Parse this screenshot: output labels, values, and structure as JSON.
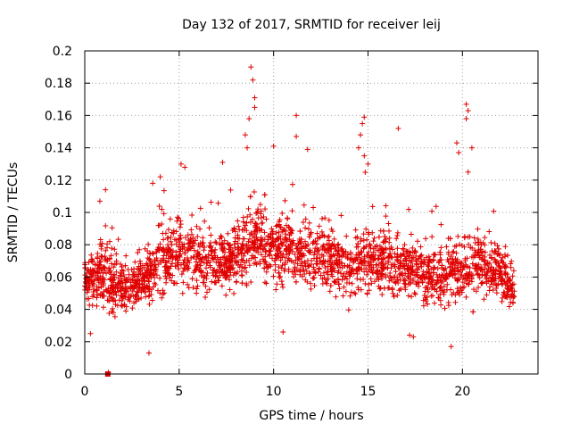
{
  "chart_data": {
    "type": "scatter",
    "title": "Day 132 of 2017, SRMTID for receiver leij",
    "xlabel": "GPS time / hours",
    "ylabel": "SRMTID / TECUs",
    "xlim": [
      0,
      24
    ],
    "ylim": [
      0,
      0.2
    ],
    "x_ticks": [
      0,
      5,
      10,
      15,
      20
    ],
    "x_tick_labels": [
      "0",
      "5",
      "10",
      "15",
      "20"
    ],
    "y_ticks": [
      0,
      0.02,
      0.04,
      0.06,
      0.08,
      0.1,
      0.12,
      0.14,
      0.16,
      0.18,
      0.2
    ],
    "y_tick_labels": [
      "0",
      "0.02",
      "0.04",
      "0.06",
      "0.08",
      "0.1",
      "0.12",
      "0.14",
      "0.16",
      "0.18",
      "0.2"
    ],
    "grid": true,
    "marker": "+",
    "color": "#e00000",
    "x_range_data": [
      0,
      22.75
    ],
    "profile_hours": [
      0,
      1,
      2,
      3,
      4,
      5,
      6,
      7,
      8,
      9,
      10,
      11,
      12,
      13,
      14,
      15,
      16,
      17,
      18,
      19,
      20,
      21,
      22,
      22.75
    ],
    "profile_center": [
      0.058,
      0.062,
      0.052,
      0.057,
      0.07,
      0.078,
      0.072,
      0.068,
      0.072,
      0.085,
      0.078,
      0.075,
      0.074,
      0.07,
      0.066,
      0.072,
      0.07,
      0.066,
      0.062,
      0.06,
      0.064,
      0.07,
      0.062,
      0.05
    ],
    "profile_spread": [
      0.01,
      0.018,
      0.013,
      0.014,
      0.018,
      0.02,
      0.017,
      0.016,
      0.018,
      0.022,
      0.018,
      0.018,
      0.018,
      0.017,
      0.017,
      0.018,
      0.017,
      0.016,
      0.016,
      0.016,
      0.018,
      0.018,
      0.016,
      0.01
    ],
    "point_count": 2600,
    "peaks": [
      {
        "x": 8.8,
        "y": 0.19
      },
      {
        "x": 8.9,
        "y": 0.182
      },
      {
        "x": 9.0,
        "y": 0.171
      },
      {
        "x": 9.0,
        "y": 0.165
      },
      {
        "x": 8.7,
        "y": 0.158
      },
      {
        "x": 8.5,
        "y": 0.148
      },
      {
        "x": 8.6,
        "y": 0.14
      },
      {
        "x": 10.0,
        "y": 0.141
      },
      {
        "x": 11.2,
        "y": 0.16
      },
      {
        "x": 11.2,
        "y": 0.147
      },
      {
        "x": 11.8,
        "y": 0.139
      },
      {
        "x": 14.8,
        "y": 0.159
      },
      {
        "x": 14.7,
        "y": 0.155
      },
      {
        "x": 14.6,
        "y": 0.148
      },
      {
        "x": 14.5,
        "y": 0.14
      },
      {
        "x": 14.8,
        "y": 0.135
      },
      {
        "x": 15.0,
        "y": 0.13
      },
      {
        "x": 16.6,
        "y": 0.152
      },
      {
        "x": 20.2,
        "y": 0.167
      },
      {
        "x": 20.3,
        "y": 0.163
      },
      {
        "x": 20.2,
        "y": 0.158
      },
      {
        "x": 19.7,
        "y": 0.143
      },
      {
        "x": 19.8,
        "y": 0.137
      },
      {
        "x": 20.5,
        "y": 0.14
      },
      {
        "x": 20.3,
        "y": 0.125
      },
      {
        "x": 5.1,
        "y": 0.13
      },
      {
        "x": 5.3,
        "y": 0.128
      },
      {
        "x": 7.3,
        "y": 0.131
      },
      {
        "x": 4.0,
        "y": 0.122
      },
      {
        "x": 3.6,
        "y": 0.118
      },
      {
        "x": 1.1,
        "y": 0.114
      },
      {
        "x": 0.8,
        "y": 0.107
      },
      {
        "x": 3.4,
        "y": 0.013
      },
      {
        "x": 10.5,
        "y": 0.026
      },
      {
        "x": 17.2,
        "y": 0.024
      },
      {
        "x": 17.4,
        "y": 0.023
      },
      {
        "x": 19.4,
        "y": 0.017
      },
      {
        "x": 0.3,
        "y": 0.025
      },
      {
        "x": 1.2,
        "y": 0.0
      },
      {
        "x": 1.25,
        "y": 0.001
      }
    ]
  }
}
